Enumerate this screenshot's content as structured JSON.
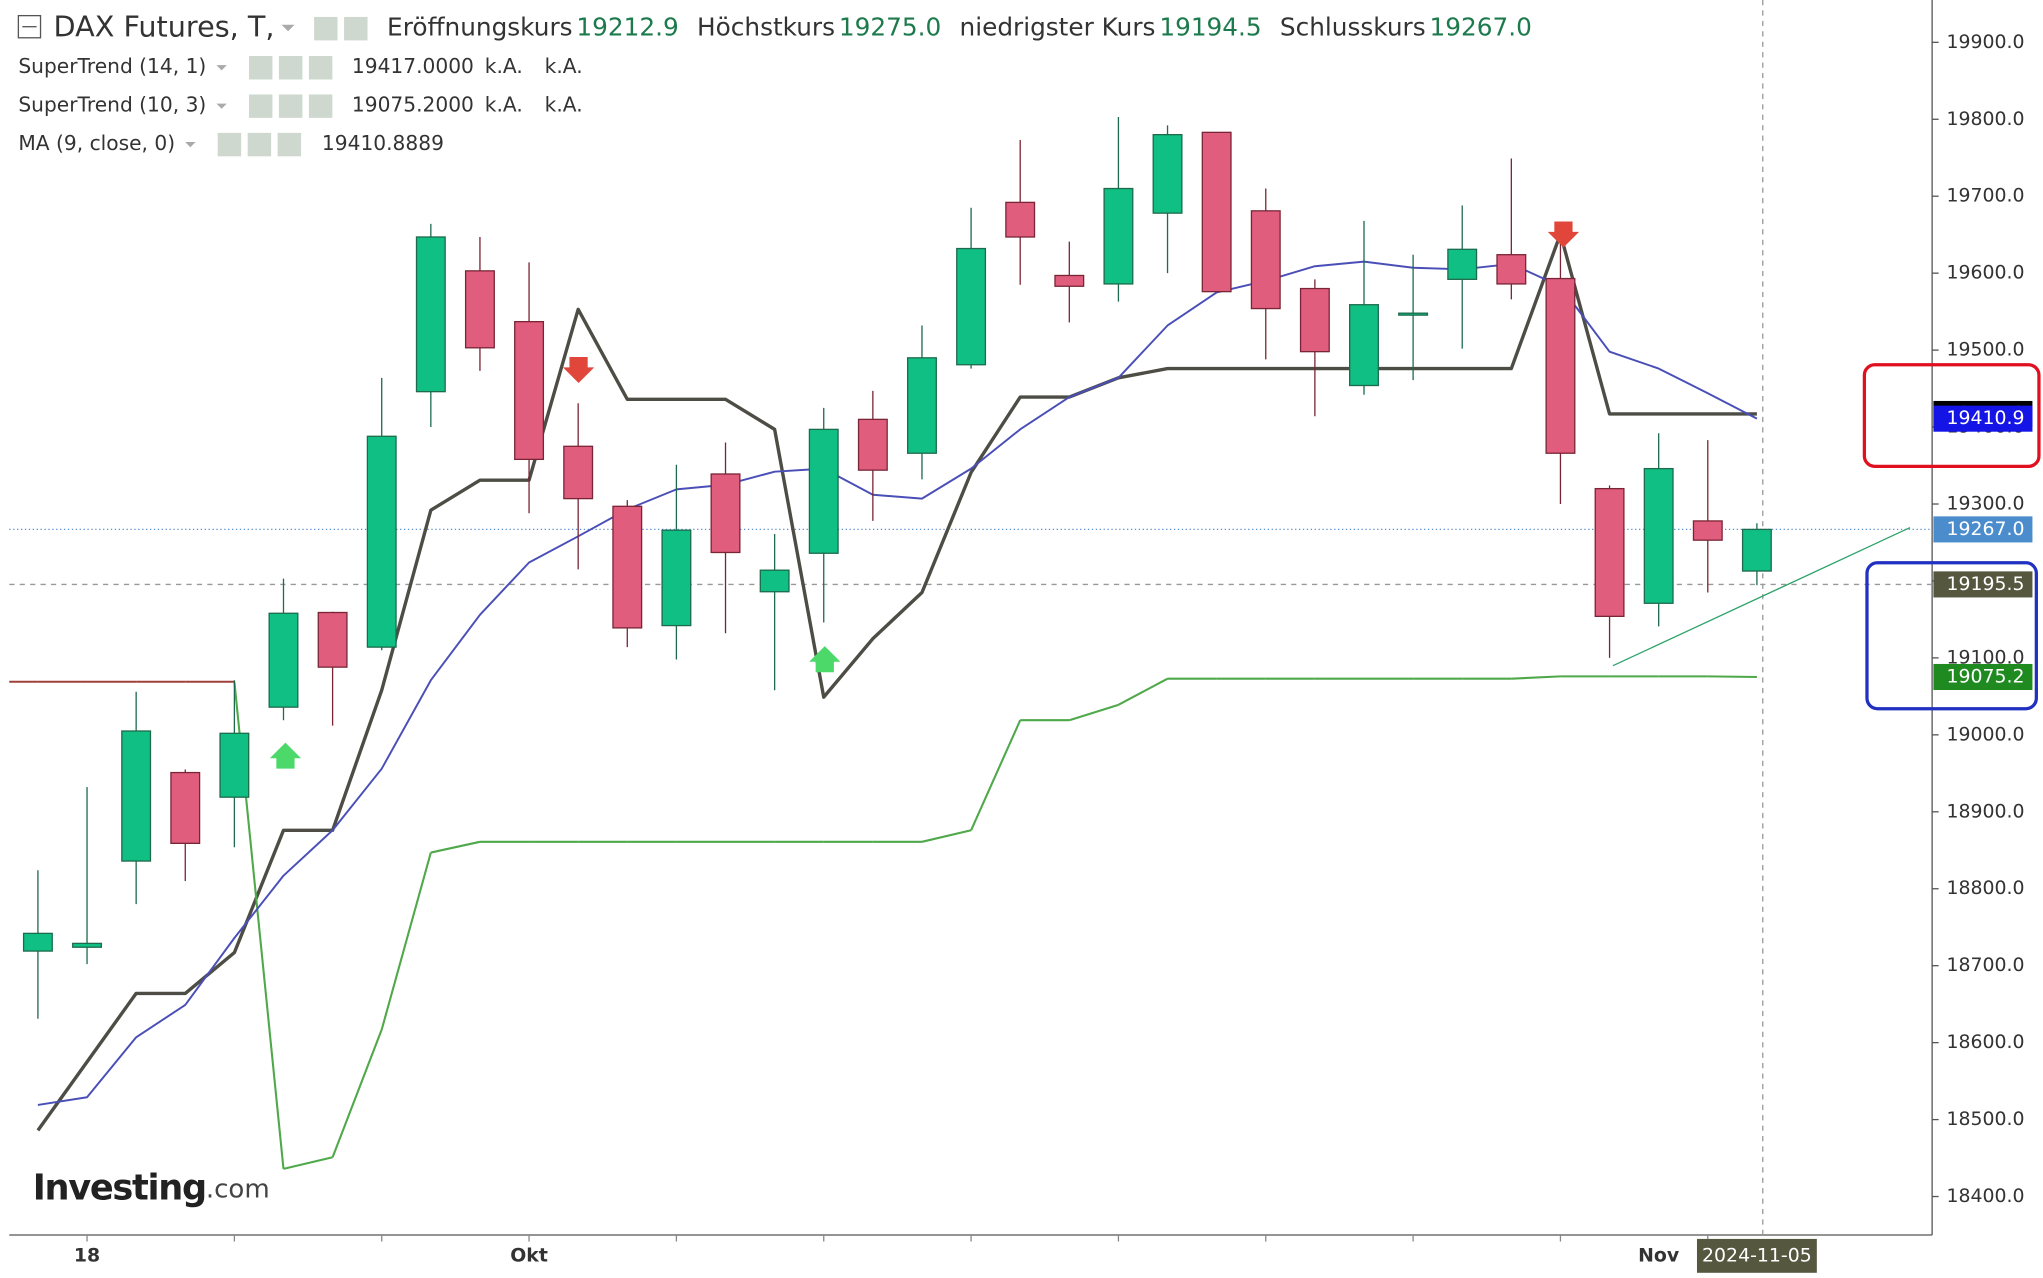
{
  "chart_data": {
    "type": "candlestick",
    "title": "DAX Futures, T,",
    "ohlc_header": [
      {
        "label": "Eröffnungskurs",
        "value": "19212.9"
      },
      {
        "label": "Höchstkurs",
        "value": "19275.0"
      },
      {
        "label": "niedrigster Kurs",
        "value": "19194.5"
      },
      {
        "label": "Schlusskurs",
        "value": "19267.0"
      }
    ],
    "logo": [
      "Investing",
      ".com"
    ],
    "categories": [
      null,
      "18",
      null,
      null,
      null,
      null,
      null,
      null,
      null,
      null,
      "Okt",
      null,
      null,
      null,
      null,
      null,
      null,
      null,
      null,
      null,
      null,
      null,
      null,
      null,
      null,
      null,
      null,
      null,
      null,
      null,
      null,
      null,
      null,
      "Nov",
      null,
      "2024-11-05"
    ],
    "open": [
      18719,
      18724,
      18836,
      18951,
      18919,
      19036,
      19159,
      19114,
      19446,
      19603,
      19537,
      19375,
      19297,
      19142,
      19339,
      19186,
      19236,
      19410,
      19366,
      19481,
      19692,
      19597,
      19586,
      19678,
      19783,
      19681,
      19580,
      19454,
      19547,
      19592,
      19624,
      19593,
      19320,
      19171,
      19278,
      19212.9
    ],
    "high": [
      18824,
      18932,
      19056,
      18955,
      19071,
      19203,
      19160,
      19464,
      19664,
      19647,
      19614,
      19431,
      19305,
      19351,
      19380,
      19261,
      19425,
      19447,
      19532,
      19685,
      19773,
      19641,
      19803,
      19792,
      19783,
      19710,
      19592,
      19668,
      19624,
      19688,
      19749,
      19651,
      19324,
      19392,
      19383,
      19275.0
    ],
    "low": [
      18631,
      18702,
      18780,
      18810,
      18854,
      19019,
      19012,
      19110,
      19400,
      19473,
      19288,
      19215,
      19114,
      19098,
      19132,
      19058,
      19146,
      19278,
      19332,
      19476,
      19585,
      19536,
      19563,
      19600,
      19576,
      19488,
      19414,
      19442,
      19461,
      19502,
      19566,
      19300,
      19100,
      19141,
      19185,
      19194.5
    ],
    "close": [
      18742,
      18729,
      19005,
      18859,
      19002,
      19158,
      19088,
      19388,
      19647,
      19503,
      19358,
      19307,
      19139,
      19266,
      19237,
      19214,
      19397,
      19344,
      19490,
      19632,
      19647,
      19583,
      19710,
      19780,
      19576,
      19554,
      19498,
      19559,
      19548,
      19631,
      19586,
      19366,
      19154,
      19346,
      19253,
      19267.0
    ],
    "up_color": "#0fbf84",
    "up_border": "#1d6b4c",
    "down_color": "#e05d7d",
    "down_border": "#7a2536",
    "indicators": [
      {
        "name": "SuperTrend (14, 1)",
        "value": "19417.0000",
        "extra": [
          "k.A.",
          "k.A."
        ],
        "value_color": "#000000",
        "color": "#4d4d45",
        "width": 2.6,
        "values": [
          18486,
          18575,
          18664,
          18664,
          18717,
          18876,
          18876,
          19058,
          19292,
          19331,
          19331,
          19553,
          19436,
          19436,
          19436,
          19397,
          19049,
          19125,
          19185,
          19341,
          19439,
          19439,
          19464,
          19476,
          19476,
          19476,
          19476,
          19476,
          19476,
          19476,
          19476,
          19651,
          19417,
          19417,
          19417,
          19417
        ]
      },
      {
        "name": "SuperTrend (10, 3)",
        "value": "19075.2000",
        "extra": [
          "k.A.",
          "k.A."
        ],
        "value_color": "#1a7a1a",
        "color": "#4fa84a",
        "width": 1.6,
        "colors": [
          "#a0403a",
          "#a0403a",
          "#a0403a",
          "#a0403a",
          "#a0403a",
          "#4fa84a",
          "#4fa84a",
          "#4fa84a",
          "#4fa84a",
          "#4fa84a",
          "#4fa84a",
          "#4fa84a",
          "#4fa84a",
          "#4fa84a",
          "#4fa84a",
          "#4fa84a",
          "#4fa84a",
          "#4fa84a",
          "#4fa84a",
          "#4fa84a",
          "#4fa84a",
          "#4fa84a",
          "#4fa84a",
          "#4fa84a",
          "#4fa84a",
          "#4fa84a",
          "#4fa84a",
          "#4fa84a",
          "#4fa84a",
          "#4fa84a",
          "#4fa84a",
          "#4fa84a",
          "#4fa84a",
          "#4fa84a",
          "#4fa84a",
          "#4fa84a"
        ],
        "values": [
          19069,
          19069,
          19069,
          19069,
          19069,
          18436,
          18451,
          18617,
          18847,
          18861,
          18861,
          18861,
          18861,
          18861,
          18861,
          18861,
          18861,
          18861,
          18861,
          18876,
          19019,
          19019,
          19039,
          19073,
          19073,
          19073,
          19073,
          19073,
          19073,
          19073,
          19073,
          19076,
          19076,
          19076,
          19076,
          19075.2
        ]
      },
      {
        "name": "MA (9, close, 0)",
        "value": "19410.8889",
        "value_color": "#1010d0",
        "color": "#4a4fb8",
        "width": 1.5,
        "values": [
          18519,
          18529,
          18607,
          18649,
          18736,
          18817,
          18876,
          18956,
          19071,
          19156,
          19224,
          19258,
          19293,
          19319,
          19325,
          19342,
          19346,
          19312,
          19307,
          19346,
          19397,
          19439,
          19464,
          19532,
          19575,
          19590,
          19609,
          19615,
          19607,
          19605,
          19612,
          19583,
          19498,
          19476,
          19444,
          19410.9
        ]
      }
    ],
    "ylim": [
      18350,
      19955
    ],
    "yticks": [
      {
        "value": 18400,
        "label": "18400.0"
      },
      {
        "value": 18500,
        "label": "18500.0"
      },
      {
        "value": 18600,
        "label": "18600.0"
      },
      {
        "value": 18700,
        "label": "18700.0"
      },
      {
        "value": 18800,
        "label": "18800.0"
      },
      {
        "value": 18900,
        "label": "18900.0"
      },
      {
        "value": 19000,
        "label": "19000.0"
      },
      {
        "value": 19100,
        "label": "19100.0"
      },
      {
        "value": 19200,
        "label": "19200.0"
      },
      {
        "value": 19300,
        "label": "19300.0"
      },
      {
        "value": 19400,
        "label": "19400.0"
      },
      {
        "value": 19500,
        "label": "19500.0"
      },
      {
        "value": 19600,
        "label": "19600.0"
      },
      {
        "value": 19700,
        "label": "19700.0"
      },
      {
        "value": 19800,
        "label": "19800.0"
      },
      {
        "value": 19900,
        "label": "19900.0"
      }
    ],
    "price_tags": [
      {
        "value": 19417.0,
        "label": "19417.0",
        "color": "#000000"
      },
      {
        "value": 19410.9,
        "label": "19410.9",
        "color": "#1414e6"
      },
      {
        "value": 19267.0,
        "label": "19267.0",
        "color": "#4a8ccc",
        "line": "dotted"
      },
      {
        "value": 19195.5,
        "label": "19195.5",
        "color": "#55583f",
        "line": "dashed"
      },
      {
        "value": 19075.2,
        "label": "19075.2",
        "color": "#1f8a1f"
      }
    ]
  }
}
